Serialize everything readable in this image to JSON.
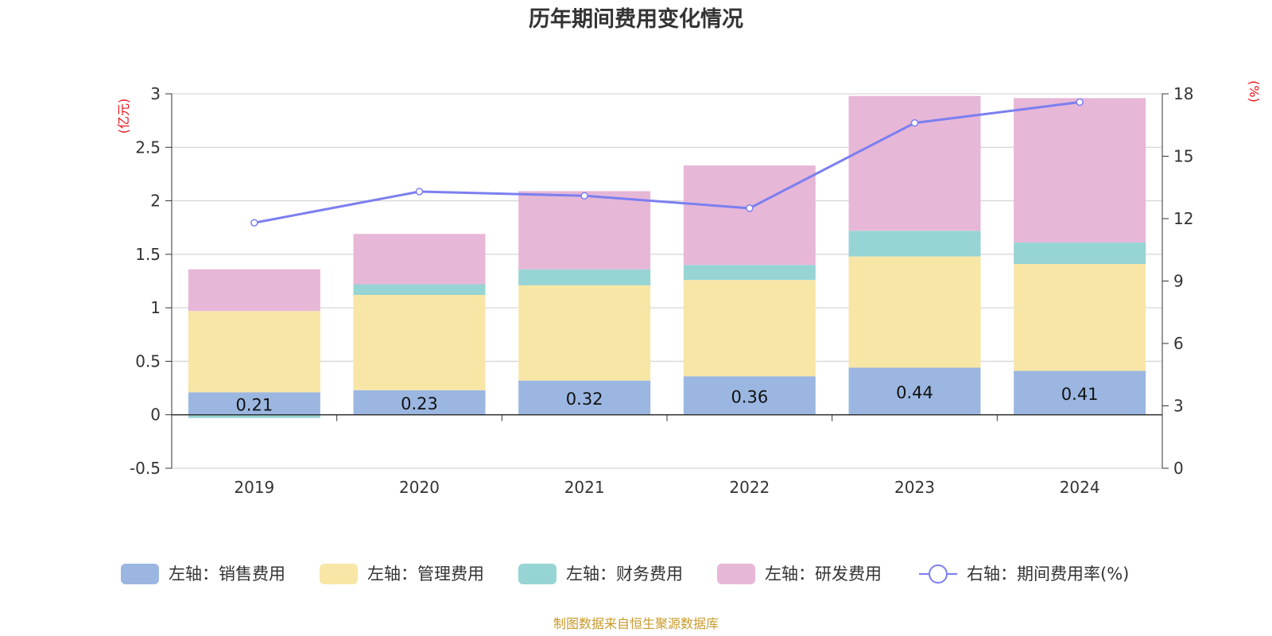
{
  "chart_data": {
    "type": "bar",
    "stacked": true,
    "title": "历年期间费用变化情况",
    "categories": [
      "2019",
      "2020",
      "2021",
      "2022",
      "2023",
      "2024"
    ],
    "series": [
      {
        "name": "左轴：销售费用",
        "axis": "left",
        "color": "#9bb7e1",
        "values": [
          0.21,
          0.23,
          0.32,
          0.36,
          0.44,
          0.41
        ],
        "labels": [
          "0.21",
          "0.23",
          "0.32",
          "0.36",
          "0.44",
          "0.41"
        ]
      },
      {
        "name": "左轴：管理费用",
        "axis": "left",
        "color": "#f8e6a7",
        "values": [
          0.76,
          0.89,
          0.89,
          0.9,
          1.04,
          1.0
        ]
      },
      {
        "name": "左轴：财务费用",
        "axis": "left",
        "color": "#97d4d4",
        "values": [
          -0.03,
          0.1,
          0.15,
          0.14,
          0.24,
          0.2
        ]
      },
      {
        "name": "左轴：研发费用",
        "axis": "left",
        "color": "#e7b7d7",
        "values": [
          0.39,
          0.47,
          0.73,
          0.93,
          1.26,
          1.35
        ]
      }
    ],
    "line_series": {
      "name": "右轴：期间费用率(%)",
      "axis": "right",
      "color": "#7b7ff0",
      "values": [
        11.8,
        13.3,
        13.1,
        12.5,
        16.6,
        17.6
      ]
    },
    "left_axis": {
      "unit": "(亿元)",
      "ylim": [
        -0.5,
        3
      ],
      "ticks": [
        "-0.5",
        "0",
        "0.5",
        "1",
        "1.5",
        "2",
        "2.5",
        "3"
      ]
    },
    "right_axis": {
      "unit": "(%)",
      "ylim": [
        0,
        18
      ],
      "ticks": [
        "0",
        "3",
        "6",
        "9",
        "12",
        "15",
        "18"
      ]
    },
    "grid": true,
    "legend_position": "bottom",
    "source": "制图数据来自恒生聚源数据库"
  }
}
